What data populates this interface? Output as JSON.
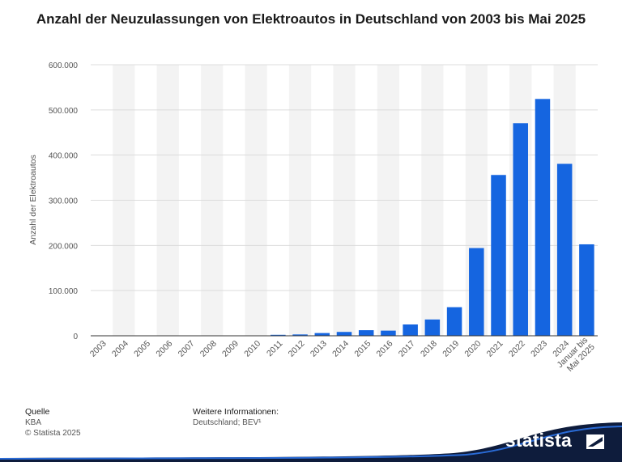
{
  "title": "Anzahl der Neuzulassungen von Elektroautos in Deutschland von 2003 bis Mai 2025",
  "footer": {
    "source_heading": "Quelle",
    "source": "KBA",
    "copyright": "© Statista 2025",
    "info_heading": "Weitere Informationen:",
    "info": "Deutschland; BEV¹"
  },
  "brand": {
    "name": "statista"
  },
  "colors": {
    "bar": "#1565e0",
    "grid": "#dcdcdc",
    "band": "#f3f3f3",
    "text": "#555555"
  },
  "chart_data": {
    "type": "bar",
    "title": "Anzahl der Neuzulassungen von Elektroautos in Deutschland von 2003 bis Mai 2025",
    "xlabel": "",
    "ylabel": "Anzahl der Elektroautos",
    "ylim": [
      0,
      600000
    ],
    "yticks": [
      0,
      100000,
      200000,
      300000,
      400000,
      500000,
      600000
    ],
    "ytick_labels": [
      "0",
      "100.000",
      "200.000",
      "300.000",
      "400.000",
      "500.000",
      "600.000"
    ],
    "categories": [
      "2003",
      "2004",
      "2005",
      "2006",
      "2007",
      "2008",
      "2009",
      "2010",
      "2011",
      "2012",
      "2013",
      "2014",
      "2015",
      "2016",
      "2017",
      "2018",
      "2019",
      "2020",
      "2021",
      "2022",
      "2023",
      "2024",
      "Januar bis Mai 2025"
    ],
    "values": [
      0,
      0,
      19,
      19,
      8,
      36,
      162,
      541,
      2154,
      2956,
      6051,
      8522,
      12363,
      11410,
      25056,
      36062,
      63281,
      194163,
      355961,
      470559,
      524219,
      380609,
      202450
    ]
  }
}
